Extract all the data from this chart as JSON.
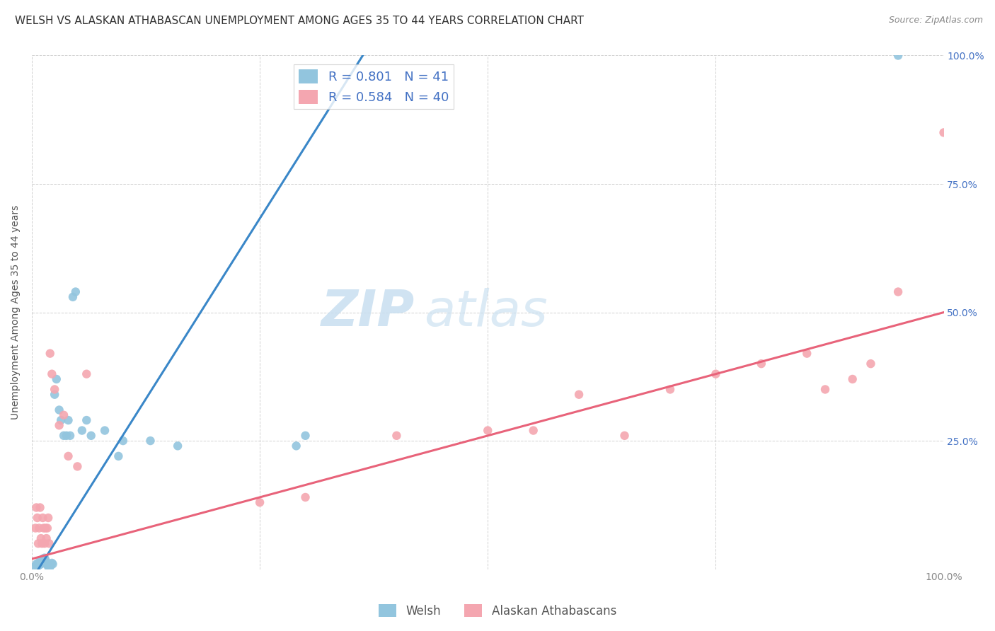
{
  "title": "WELSH VS ALASKAN ATHABASCAN UNEMPLOYMENT AMONG AGES 35 TO 44 YEARS CORRELATION CHART",
  "source": "Source: ZipAtlas.com",
  "ylabel": "Unemployment Among Ages 35 to 44 years",
  "xlim": [
    0,
    1
  ],
  "ylim": [
    0,
    1
  ],
  "welsh_color": "#92c5de",
  "alaskan_color": "#f4a6b0",
  "welsh_line_color": "#3a87c8",
  "alaskan_line_color": "#e8637a",
  "R_welsh": 0.801,
  "N_welsh": 41,
  "R_alaskan": 0.584,
  "N_alaskan": 40,
  "legend_label_welsh": "Welsh",
  "legend_label_alaskan": "Alaskan Athabascans",
  "watermark_zip": "ZIP",
  "watermark_atlas": "atlas",
  "background_color": "#ffffff",
  "welsh_scatter_x": [
    0.003,
    0.005,
    0.006,
    0.007,
    0.008,
    0.009,
    0.01,
    0.011,
    0.012,
    0.013,
    0.014,
    0.015,
    0.016,
    0.017,
    0.018,
    0.019,
    0.02,
    0.021,
    0.022,
    0.023,
    0.025,
    0.027,
    0.03,
    0.032,
    0.035,
    0.038,
    0.04,
    0.042,
    0.045,
    0.048,
    0.055,
    0.06,
    0.065,
    0.08,
    0.095,
    0.1,
    0.13,
    0.16,
    0.29,
    0.3,
    0.95
  ],
  "welsh_scatter_y": [
    0.005,
    0.01,
    0.005,
    0.012,
    0.008,
    0.015,
    0.01,
    0.018,
    0.02,
    0.015,
    0.022,
    0.018,
    0.012,
    0.008,
    0.005,
    0.01,
    0.005,
    0.008,
    0.012,
    0.01,
    0.34,
    0.37,
    0.31,
    0.29,
    0.26,
    0.26,
    0.29,
    0.26,
    0.53,
    0.54,
    0.27,
    0.29,
    0.26,
    0.27,
    0.22,
    0.25,
    0.25,
    0.24,
    0.24,
    0.26,
    1.0
  ],
  "alaskan_scatter_x": [
    0.004,
    0.005,
    0.006,
    0.007,
    0.008,
    0.009,
    0.01,
    0.011,
    0.012,
    0.013,
    0.014,
    0.015,
    0.016,
    0.017,
    0.018,
    0.019,
    0.02,
    0.022,
    0.025,
    0.03,
    0.035,
    0.04,
    0.05,
    0.06,
    0.25,
    0.3,
    0.4,
    0.5,
    0.55,
    0.6,
    0.65,
    0.7,
    0.75,
    0.8,
    0.85,
    0.87,
    0.9,
    0.92,
    0.95,
    1.0
  ],
  "alaskan_scatter_y": [
    0.08,
    0.12,
    0.1,
    0.05,
    0.08,
    0.12,
    0.06,
    0.05,
    0.1,
    0.08,
    0.05,
    0.08,
    0.06,
    0.08,
    0.1,
    0.05,
    0.42,
    0.38,
    0.35,
    0.28,
    0.3,
    0.22,
    0.2,
    0.38,
    0.13,
    0.14,
    0.26,
    0.27,
    0.27,
    0.34,
    0.26,
    0.35,
    0.38,
    0.4,
    0.42,
    0.35,
    0.37,
    0.4,
    0.54,
    0.85
  ],
  "welsh_line_x0": 0.0,
  "welsh_line_y0": -0.02,
  "welsh_line_x1": 0.37,
  "welsh_line_y1": 1.02,
  "alaskan_line_x0": 0.0,
  "alaskan_line_y0": 0.02,
  "alaskan_line_x1": 1.0,
  "alaskan_line_y1": 0.5,
  "title_fontsize": 11,
  "axis_label_fontsize": 10,
  "tick_fontsize": 10,
  "legend_fontsize": 12,
  "watermark_fontsize": 52
}
